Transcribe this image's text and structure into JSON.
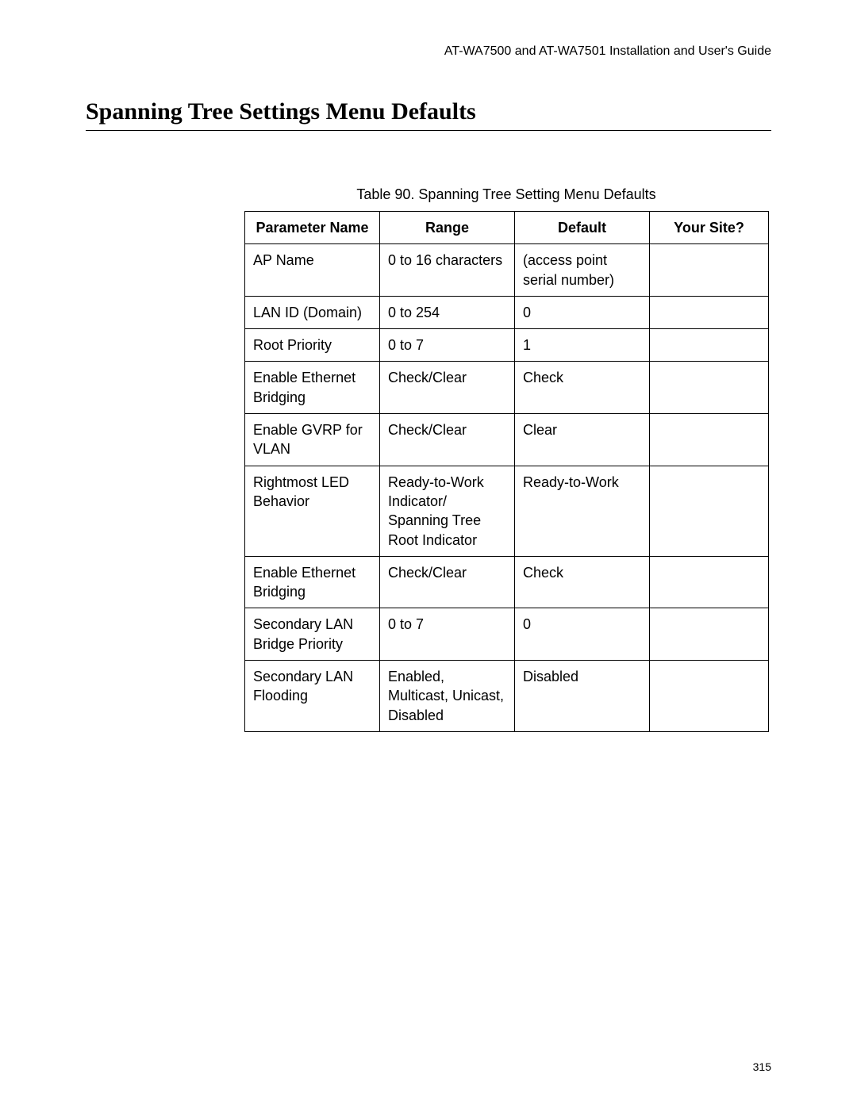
{
  "header": {
    "guide": "AT-WA7500 and AT-WA7501 Installation and User's Guide"
  },
  "title": "Spanning Tree Settings Menu Defaults",
  "table": {
    "caption": "Table 90. Spanning Tree Setting Menu Defaults",
    "columns": {
      "param": "Parameter Name",
      "range": "Range",
      "default": "Default",
      "site": "Your Site?"
    },
    "rows": [
      {
        "param": "AP Name",
        "range": "0 to 16 characters",
        "default": "(access point serial number)",
        "site": ""
      },
      {
        "param": "LAN ID (Domain)",
        "range": "0 to 254",
        "default": "0",
        "site": ""
      },
      {
        "param": "Root Priority",
        "range": "0 to 7",
        "default": "1",
        "site": ""
      },
      {
        "param": "Enable Ethernet Bridging",
        "range": "Check/Clear",
        "default": "Check",
        "site": ""
      },
      {
        "param": "Enable GVRP for VLAN",
        "range": "Check/Clear",
        "default": "Clear",
        "site": ""
      },
      {
        "param": "Rightmost LED Behavior",
        "range": "Ready-to-Work Indicator/ Spanning Tree Root Indicator",
        "default": "Ready-to-Work",
        "site": ""
      },
      {
        "param": "Enable Ethernet Bridging",
        "range": "Check/Clear",
        "default": "Check",
        "site": ""
      },
      {
        "param": "Secondary LAN Bridge Priority",
        "range": "0 to 7",
        "default": "0",
        "site": ""
      },
      {
        "param": "Secondary LAN Flooding",
        "range": "Enabled, Multicast, Unicast, Disabled",
        "default": "Disabled",
        "site": ""
      }
    ]
  },
  "pageNumber": "315"
}
